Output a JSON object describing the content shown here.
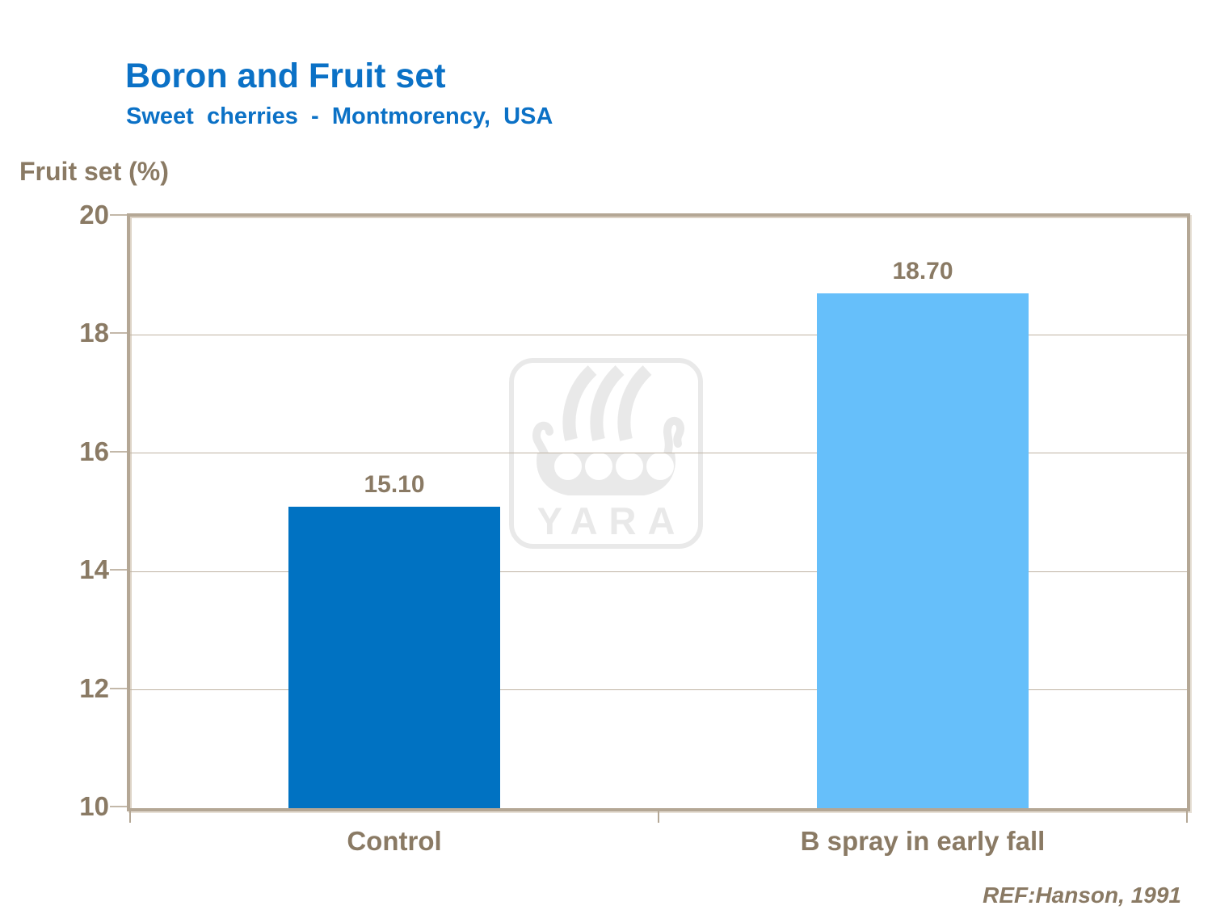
{
  "header": {
    "title": "Boron and Fruit set",
    "subtitle": "Sweet cherries - Montmorency, USA"
  },
  "footer": {
    "reference": "REF:Hanson, 1991"
  },
  "watermark": {
    "brand": "YARA"
  },
  "colors": {
    "title_blue": "#0B71C6",
    "text_brown": "#8A7A64",
    "bar_control": "#0072C2",
    "bar_b_spray": "#66BFFA",
    "gridline_tan": "#BFB3A3",
    "frame_tan": "#B4A795",
    "watermark_gray": "#E9E9E9"
  },
  "chart_data": {
    "type": "bar",
    "title": "Boron and Fruit set",
    "subtitle": "Sweet cherries - Montmorency, USA",
    "categories": [
      "Control",
      "B spray in early fall"
    ],
    "values": [
      15.1,
      18.7
    ],
    "value_labels": [
      "15.10",
      "18.70"
    ],
    "series_colors": [
      "#0072C2",
      "#66BFFA"
    ],
    "xlabel": "",
    "ylabel": "Fruit set (%)",
    "ylim": [
      10,
      20
    ],
    "yticks": [
      10,
      12,
      14,
      16,
      18,
      20
    ],
    "grid": true,
    "legend": false,
    "annotation": "REF:Hanson, 1991"
  }
}
